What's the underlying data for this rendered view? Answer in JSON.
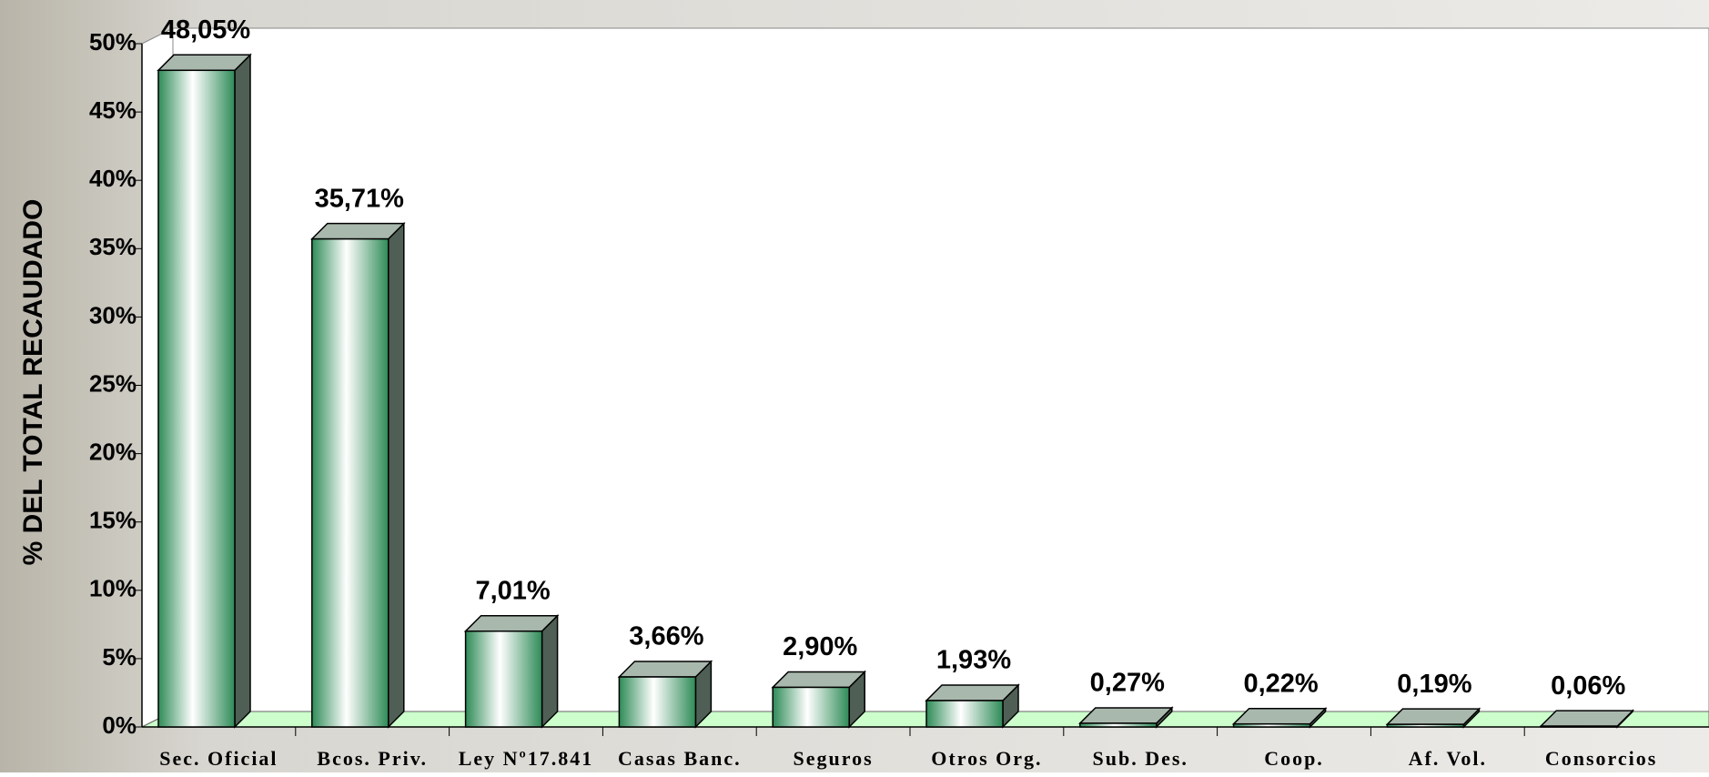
{
  "chart_data": {
    "type": "bar3d",
    "y_axis_label": "% DEL TOTAL RECAUDADO",
    "categories": [
      "Sec. Oficial",
      "Bcos. Priv.",
      "Ley Nº17.841",
      "Casas Banc.",
      "Seguros",
      "Otros Org.",
      "Sub. Des.",
      "Coop.",
      "Af. Vol.",
      "Consorcios"
    ],
    "values": [
      48.05,
      35.71,
      7.01,
      3.66,
      2.9,
      1.93,
      0.27,
      0.22,
      0.19,
      0.06
    ],
    "value_labels": [
      "48,05%",
      "35,71%",
      "7,01%",
      "3,66%",
      "2,90%",
      "1,93%",
      "0,27%",
      "0,22%",
      "0,19%",
      "0,06%"
    ],
    "color": "#2e8b57",
    "ylim": [
      0,
      50
    ],
    "yticks": [
      {
        "value": 0,
        "label": "0%"
      },
      {
        "value": 5,
        "label": "5%"
      },
      {
        "value": 10,
        "label": "10%"
      },
      {
        "value": 15,
        "label": "15%"
      },
      {
        "value": 20,
        "label": "20%"
      },
      {
        "value": 25,
        "label": "25%"
      },
      {
        "value": 30,
        "label": "30%"
      },
      {
        "value": 35,
        "label": "35%"
      },
      {
        "value": 40,
        "label": "40%"
      },
      {
        "value": 45,
        "label": "45%"
      },
      {
        "value": 50,
        "label": "50%"
      }
    ]
  }
}
